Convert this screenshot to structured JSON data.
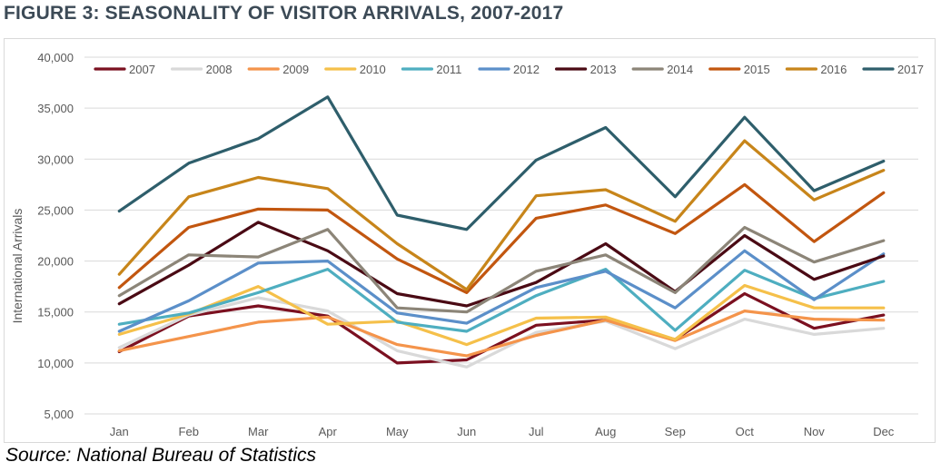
{
  "figure": {
    "title": "FIGURE 3: SEASONALITY OF VISITOR ARRIVALS, 2007-2017",
    "source": "Source: National Bureau of Statistics"
  },
  "chart_data": {
    "type": "line",
    "title": "",
    "xlabel": "",
    "ylabel": "International Arrivals",
    "categories": [
      "Jan",
      "Feb",
      "Mar",
      "Apr",
      "May",
      "Jun",
      "Jul",
      "Aug",
      "Sep",
      "Oct",
      "Nov",
      "Dec"
    ],
    "ylim": [
      5000,
      40000
    ],
    "yticks": [
      5000,
      10000,
      15000,
      20000,
      25000,
      30000,
      35000,
      40000
    ],
    "ytick_labels": [
      "5,000",
      "10,000",
      "15,000",
      "20,000",
      "25,000",
      "30,000",
      "35,000",
      "40,000"
    ],
    "grid": "horizontal",
    "legend_position": "top",
    "series": [
      {
        "name": "2007",
        "color": "#7b1020",
        "values": [
          11100,
          14600,
          15600,
          14600,
          10000,
          10300,
          13700,
          14200,
          12300,
          16800,
          13400,
          14700
        ]
      },
      {
        "name": "2008",
        "color": "#d9d9d9",
        "values": [
          11500,
          14700,
          16400,
          15100,
          11200,
          9600,
          13000,
          14100,
          11400,
          14300,
          12800,
          13400
        ]
      },
      {
        "name": "2009",
        "color": "#f4944b",
        "values": [
          11200,
          12600,
          14000,
          14500,
          11800,
          10700,
          12700,
          14200,
          12200,
          15100,
          14300,
          14200
        ]
      },
      {
        "name": "2010",
        "color": "#f5c04a",
        "values": [
          12800,
          14800,
          17500,
          13800,
          14100,
          11800,
          14400,
          14500,
          12300,
          17600,
          15400,
          15400
        ]
      },
      {
        "name": "2011",
        "color": "#4eaec0",
        "values": [
          13800,
          14900,
          16900,
          19200,
          14000,
          13100,
          16600,
          19200,
          13200,
          19100,
          16300,
          18000
        ]
      },
      {
        "name": "2012",
        "color": "#5b8fc9",
        "values": [
          13100,
          16100,
          19800,
          20000,
          14900,
          13900,
          17400,
          19000,
          15400,
          21000,
          16200,
          20700
        ]
      },
      {
        "name": "2013",
        "color": "#4a0a14",
        "values": [
          15800,
          19600,
          23800,
          21000,
          16800,
          15600,
          17900,
          21700,
          17000,
          22500,
          18200,
          20500
        ]
      },
      {
        "name": "2014",
        "color": "#8c8578",
        "values": [
          16600,
          20600,
          20400,
          23100,
          15400,
          15000,
          19000,
          20600,
          16900,
          23300,
          19900,
          22000
        ]
      },
      {
        "name": "2015",
        "color": "#c2560f",
        "values": [
          17400,
          23300,
          25100,
          25000,
          20200,
          16900,
          24200,
          25500,
          22700,
          27500,
          21900,
          26700
        ]
      },
      {
        "name": "2016",
        "color": "#c7851a",
        "values": [
          18700,
          26300,
          28200,
          27100,
          21700,
          17200,
          26400,
          27000,
          23900,
          31800,
          26000,
          28900
        ]
      },
      {
        "name": "2017",
        "color": "#2e5e6b",
        "values": [
          24900,
          29600,
          32000,
          36100,
          24500,
          23100,
          29900,
          33100,
          26300,
          34100,
          26900,
          29800
        ]
      }
    ]
  }
}
